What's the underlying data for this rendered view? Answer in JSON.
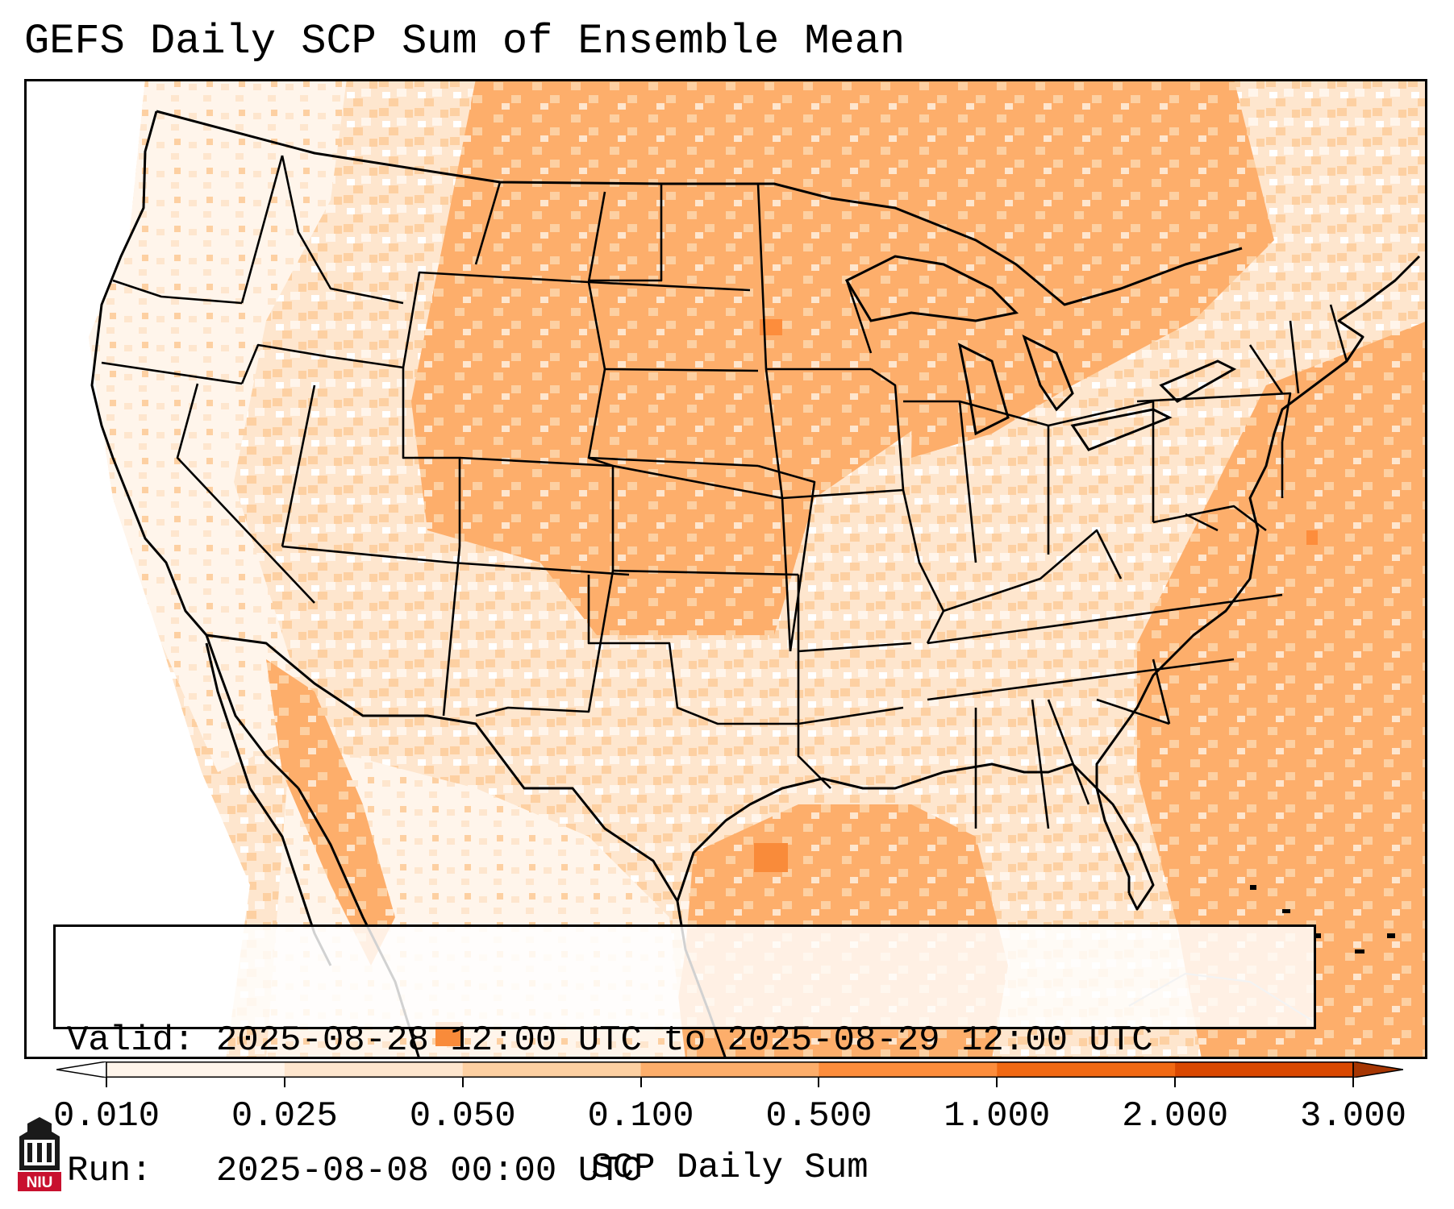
{
  "title": "GEFS Daily SCP Sum of Ensemble Mean",
  "info": {
    "valid_line": "Valid: 2025-08-28 12:00 UTC to 2025-08-29 12:00 UTC",
    "run_line": "Run:   2025-08-08 00:00 UTC"
  },
  "colorbar": {
    "label": "SCP Daily Sum",
    "ticks": [
      "0.010",
      "0.025",
      "0.050",
      "0.100",
      "0.500",
      "1.000",
      "2.000",
      "3.000"
    ],
    "colors": [
      "#fff5eb",
      "#fee6ce",
      "#fdd0a2",
      "#fdae6b",
      "#fd8d3c",
      "#f16913",
      "#d94801",
      "#a63603"
    ],
    "extend": "both"
  },
  "map": {
    "domain": "CONUS",
    "colors": {
      "border": "#000000",
      "ocean_fill": "#fdae6b",
      "outline_gray": "#bdbdbd"
    }
  },
  "logo": {
    "text": "NIU",
    "brand_color": "#c8102e"
  }
}
